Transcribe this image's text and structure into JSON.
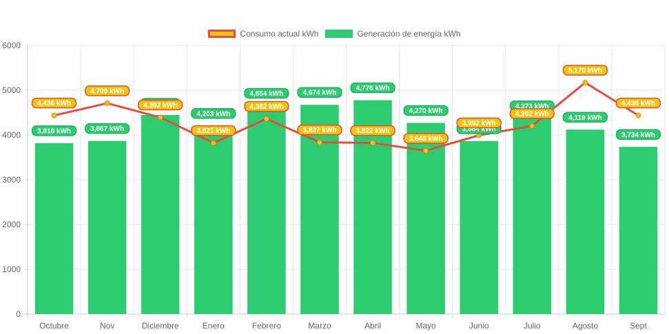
{
  "legend": [
    {
      "label": "Consumo actual kWh",
      "fill": "#f1c40f",
      "border": "#e74c3c"
    },
    {
      "label": "Generación de energía kWh",
      "fill": "#2ecc71",
      "border": "#2ecc71"
    }
  ],
  "chart_data": {
    "type": "bar",
    "title": "",
    "xlabel": "",
    "ylabel": "",
    "ylim": [
      0,
      6000
    ],
    "yticks": [
      0,
      1000,
      2000,
      3000,
      4000,
      5000,
      6000
    ],
    "grid": true,
    "legend_position": "top",
    "categories": [
      "Octubre",
      "Nov",
      "Diciembre",
      "Enero",
      "Febrero",
      "Marzo",
      "Abril",
      "Mayo",
      "Junio",
      "Julio",
      "Agosto",
      "Sept"
    ],
    "series": [
      {
        "name": "Generación de energía kWh",
        "type": "bar",
        "color": "#2ecc71",
        "values": [
          3818,
          3867,
          4446,
          4203,
          4654,
          4674,
          4776,
          4270,
          3864,
          4373,
          4119,
          3734
        ],
        "labels": [
          "3,818 kWh",
          "3,867 kWh",
          "",
          "4,203 kWh",
          "4,654 kWh",
          "4,674 kWh",
          "4,776 kWh",
          "4,270 kWh",
          "3,864 kWh",
          "4,373 kWh",
          "4,119 kWh",
          "3,734 kWh"
        ]
      },
      {
        "name": "Consumo actual kWh",
        "type": "line",
        "color": "#e74c3c",
        "point_color": "#f1c40f",
        "values": [
          4436,
          4709,
          4392,
          3821,
          4362,
          3837,
          3822,
          3648,
          3992,
          4202,
          5170,
          4436
        ],
        "labels": [
          "4,436 kWh",
          "4,709 kWh",
          "4,392 kWh",
          "3,821 kWh",
          "4,362 kWh",
          "3,837 kWh",
          "3,822 kWh",
          "3,648 kWh",
          "3,992 kWh",
          "4,202 kWh",
          "5,170 kWh",
          "4,436 kWh"
        ]
      }
    ]
  }
}
